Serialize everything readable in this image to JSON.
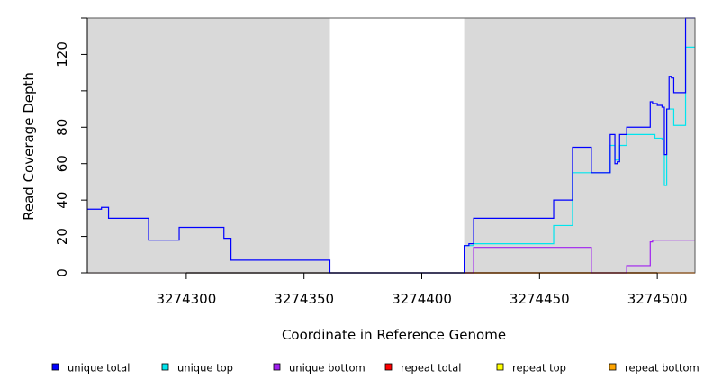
{
  "chart_data": {
    "type": "line",
    "xlabel": "Coordinate in Reference Genome",
    "ylabel": "Read Coverage Depth",
    "xlim": [
      3274258,
      3274516
    ],
    "ylim": [
      0,
      140
    ],
    "x_ticks": [
      3274300,
      3274350,
      3274400,
      3274450,
      3274500
    ],
    "y_ticks": [
      0,
      20,
      40,
      60,
      80,
      100,
      120,
      140
    ],
    "y_tick_labels": [
      "0",
      "20",
      "40",
      "60",
      "80",
      "",
      "120",
      ""
    ],
    "shaded_regions": [
      {
        "start": 3274258,
        "end": 3274361,
        "color": "#d9d9d9"
      },
      {
        "start": 3274418,
        "end": 3274516,
        "color": "#d9d9d9"
      }
    ],
    "legend_position": "bottom",
    "grid": false,
    "series": [
      {
        "name": "unique total",
        "color": "#0000ff",
        "x": [
          3274258,
          3274261,
          3274264,
          3274267,
          3274278,
          3274284,
          3274297,
          3274310,
          3274314,
          3274316,
          3274319,
          3274330,
          3274350,
          3274361,
          3274370,
          3274390,
          3274417,
          3274418,
          3274420,
          3274422,
          3274430,
          3274440,
          3274450,
          3274456,
          3274464,
          3274468,
          3274472,
          3274480,
          3274482,
          3274483,
          3274484,
          3274487,
          3274490,
          3274496,
          3274497,
          3274498,
          3274500,
          3274501,
          3274502,
          3274503,
          3274504,
          3274505,
          3274506,
          3274507,
          3274511,
          3274512,
          3274516
        ],
        "y": [
          35,
          35,
          36,
          30,
          30,
          18,
          25,
          25,
          25,
          19,
          7,
          7,
          7,
          0,
          0,
          0,
          0,
          15,
          16,
          30,
          30,
          30,
          30,
          40,
          69,
          69,
          55,
          76,
          60,
          61,
          76,
          80,
          80,
          80,
          94,
          93,
          92,
          92,
          91,
          65,
          90,
          108,
          107,
          99,
          99,
          140,
          140
        ]
      },
      {
        "name": "unique top",
        "color": "#00e5ee",
        "x": [
          3274258,
          3274361,
          3274417,
          3274418,
          3274420,
          3274422,
          3274440,
          3274456,
          3274464,
          3274472,
          3274480,
          3274482,
          3274484,
          3274487,
          3274496,
          3274499,
          3274502,
          3274503,
          3274504,
          3274505,
          3274507,
          3274511,
          3274512,
          3274516
        ],
        "y": [
          0,
          0,
          0,
          15,
          15,
          16,
          16,
          26,
          55,
          55,
          70,
          62,
          70,
          76,
          76,
          74,
          73,
          48,
          90,
          90,
          81,
          81,
          124,
          124
        ]
      },
      {
        "name": "unique bottom",
        "color": "#a020f0",
        "x": [
          3274258,
          3274361,
          3274417,
          3274422,
          3274450,
          3274472,
          3274487,
          3274497,
          3274498,
          3274516
        ],
        "y": [
          0,
          0,
          0,
          14,
          14,
          0,
          4,
          17,
          18,
          18
        ]
      },
      {
        "name": "repeat total",
        "color": "#ff0000",
        "x": [
          3274258,
          3274516
        ],
        "y": [
          0,
          0
        ]
      },
      {
        "name": "repeat top",
        "color": "#ffff00",
        "x": [
          3274258,
          3274516
        ],
        "y": [
          0,
          0
        ]
      },
      {
        "name": "repeat bottom",
        "color": "#ffa500",
        "x": [
          3274258,
          3274516
        ],
        "y": [
          0,
          0
        ]
      }
    ]
  }
}
